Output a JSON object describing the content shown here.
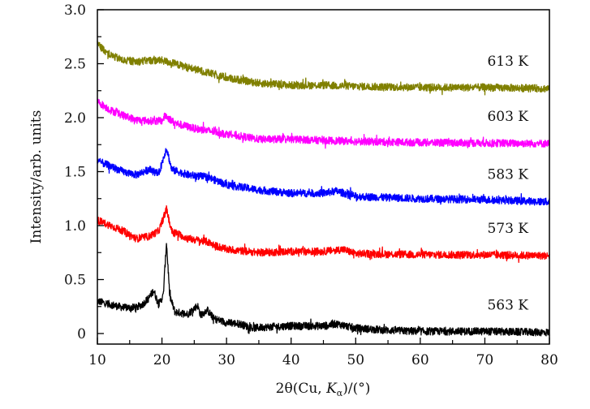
{
  "chart_data": {
    "type": "line",
    "title": "",
    "xlabel": "2θ(Cu, Kα)/(°)",
    "xlabel_parts": {
      "prefix": "2θ(Cu, ",
      "k": "K",
      "sub": "α",
      "suffix": ")/(°)"
    },
    "ylabel": "Intensity/arb. units",
    "xlim": [
      10,
      80
    ],
    "ylim": [
      0,
      3.0
    ],
    "xticks": [
      "10",
      "20",
      "30",
      "40",
      "50",
      "60",
      "70",
      "80"
    ],
    "yticks": [
      "0",
      "0.5",
      "1.0",
      "1.5",
      "2.0",
      "2.5",
      "3.0"
    ],
    "grid": false,
    "legend": "inline labels at right end of each curve",
    "series": [
      {
        "name": "563 K",
        "color": "#000000",
        "x": [
          10,
          12,
          14,
          16,
          17,
          18,
          18.7,
          19.5,
          20.2,
          20.7,
          21.2,
          22,
          24,
          25.5,
          26,
          27,
          28,
          30,
          32,
          34,
          36,
          40,
          45,
          47,
          50,
          55,
          60,
          70,
          80
        ],
        "y": [
          0.3,
          0.27,
          0.24,
          0.24,
          0.27,
          0.33,
          0.4,
          0.27,
          0.35,
          0.85,
          0.35,
          0.2,
          0.18,
          0.26,
          0.17,
          0.22,
          0.14,
          0.1,
          0.09,
          0.05,
          0.06,
          0.07,
          0.07,
          0.09,
          0.05,
          0.03,
          0.02,
          0.02,
          0.01
        ]
      },
      {
        "name": "573 K",
        "color": "#ff0000",
        "x": [
          10,
          12,
          14,
          16,
          18,
          19.5,
          20.7,
          21.5,
          24,
          27,
          28,
          30,
          35,
          40,
          45,
          48,
          50,
          60,
          70,
          80
        ],
        "y": [
          1.05,
          1.0,
          0.95,
          0.88,
          0.9,
          0.95,
          1.15,
          0.95,
          0.88,
          0.85,
          0.82,
          0.78,
          0.75,
          0.76,
          0.76,
          0.78,
          0.74,
          0.73,
          0.73,
          0.72
        ]
      },
      {
        "name": "583 K",
        "color": "#0000ff",
        "x": [
          10,
          12,
          14,
          16,
          18,
          19.5,
          20.7,
          21.5,
          24,
          27,
          30,
          35,
          40,
          45,
          47,
          50,
          60,
          70,
          80
        ],
        "y": [
          1.6,
          1.55,
          1.5,
          1.47,
          1.52,
          1.48,
          1.72,
          1.52,
          1.47,
          1.45,
          1.38,
          1.33,
          1.3,
          1.3,
          1.32,
          1.27,
          1.25,
          1.24,
          1.22
        ]
      },
      {
        "name": "603 K",
        "color": "#ff00ff",
        "x": [
          10,
          12,
          14,
          16,
          18,
          20,
          20.5,
          22,
          25,
          30,
          35,
          40,
          50,
          60,
          80
        ],
        "y": [
          2.15,
          2.07,
          2.02,
          1.98,
          1.97,
          1.97,
          2.02,
          1.95,
          1.9,
          1.85,
          1.8,
          1.8,
          1.78,
          1.77,
          1.76
        ]
      },
      {
        "name": "613 K",
        "color": "#808000",
        "x": [
          10,
          12,
          14,
          16,
          18,
          20,
          22,
          25,
          30,
          35,
          40,
          45,
          50,
          60,
          70,
          80
        ],
        "y": [
          2.68,
          2.58,
          2.53,
          2.52,
          2.53,
          2.53,
          2.5,
          2.45,
          2.37,
          2.32,
          2.3,
          2.3,
          2.29,
          2.28,
          2.28,
          2.27
        ]
      }
    ]
  }
}
